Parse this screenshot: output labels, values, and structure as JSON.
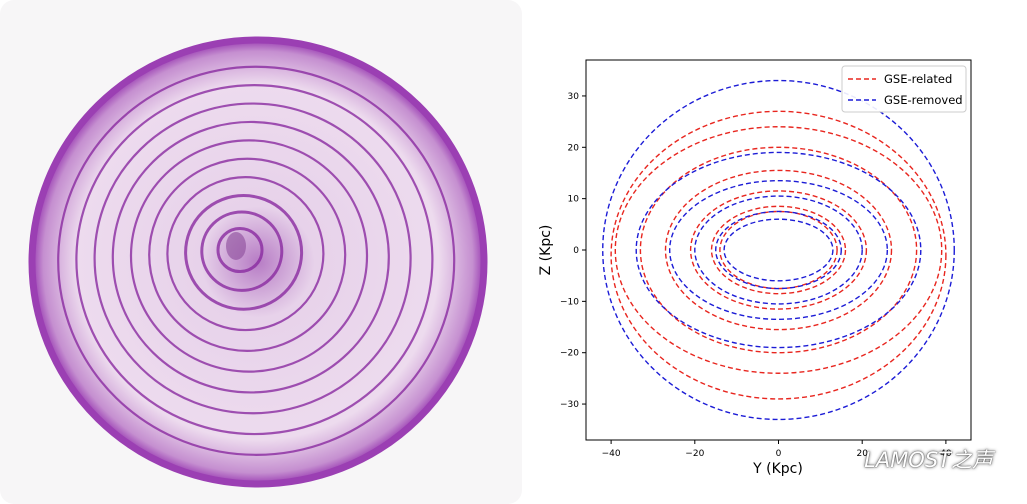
{
  "photo": {
    "subject": "red-onion-cross-section",
    "colors": {
      "ring_dark": "#8a2aa0",
      "ring_light": "#f2e4f2",
      "skin": "#9b3fb3"
    }
  },
  "watermark": {
    "text": "LAMOST之声",
    "icon": "wechat-icon"
  },
  "chart_data": {
    "type": "line",
    "xlabel": "Y (Kpc)",
    "ylabel": "Z (Kpc)",
    "xlim": [
      -46,
      46
    ],
    "ylim": [
      -37,
      37
    ],
    "xticks": [
      -40,
      -20,
      0,
      20,
      40
    ],
    "yticks": [
      -30,
      -20,
      -10,
      0,
      10,
      20,
      30
    ],
    "grid": false,
    "legend": "top-right",
    "series": [
      {
        "name": "GSE-related",
        "color": "#e8261f",
        "linestyle": "dashed",
        "orbits": [
          {
            "cx": 0,
            "cy": 0,
            "rx": 14,
            "ry": 7.5
          },
          {
            "cx": 0,
            "cy": 0,
            "rx": 16,
            "ry": 8.5
          },
          {
            "cx": 0,
            "cy": 0,
            "rx": 21,
            "ry": 11.5
          },
          {
            "cx": 0,
            "cy": 0,
            "rx": 27,
            "ry": 15.5
          },
          {
            "cx": 0,
            "cy": 0,
            "rx": 33,
            "ry": 20
          },
          {
            "cx": 0,
            "cy": 0,
            "rx": 39,
            "ry": 24
          },
          {
            "cx": 0,
            "cy": -1,
            "rx": 40,
            "ry": 28
          }
        ]
      },
      {
        "name": "GSE-removed",
        "color": "#1c1cd6",
        "linestyle": "dashed",
        "orbits": [
          {
            "cx": 0,
            "cy": 0,
            "rx": 13,
            "ry": 6
          },
          {
            "cx": 0,
            "cy": 0,
            "rx": 15,
            "ry": 7.5
          },
          {
            "cx": 0,
            "cy": 0,
            "rx": 20,
            "ry": 10.5
          },
          {
            "cx": 0,
            "cy": 0,
            "rx": 26,
            "ry": 13.5
          },
          {
            "cx": 0,
            "cy": 0,
            "rx": 34,
            "ry": 19
          },
          {
            "cx": 0,
            "cy": 0,
            "rx": 42,
            "ry": 33
          }
        ]
      }
    ]
  }
}
